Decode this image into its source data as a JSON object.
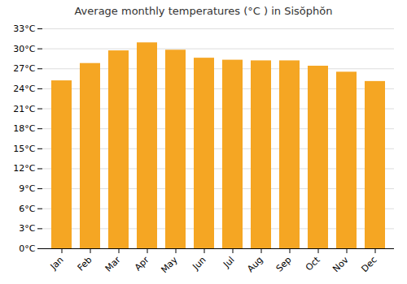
{
  "chart_data": {
    "type": "bar",
    "title": "Average monthly temperatures (°C ) in Sisŏphŏn",
    "categories": [
      "Jan",
      "Feb",
      "Mar",
      "Apr",
      "May",
      "Jun",
      "Jul",
      "Aug",
      "Sep",
      "Oct",
      "Nov",
      "Dec"
    ],
    "values": [
      25.2,
      27.8,
      29.7,
      30.9,
      29.8,
      28.6,
      28.3,
      28.2,
      28.2,
      27.4,
      26.5,
      25.1
    ],
    "color": "#F5A623",
    "ylim": [
      0,
      33
    ],
    "yticks": [
      {
        "value": 0,
        "label": "0°C"
      },
      {
        "value": 3,
        "label": "3°C"
      },
      {
        "value": 6,
        "label": "6°C"
      },
      {
        "value": 9,
        "label": "9°C"
      },
      {
        "value": 12,
        "label": "12°C"
      },
      {
        "value": 15,
        "label": "15°C"
      },
      {
        "value": 18,
        "label": "18°C"
      },
      {
        "value": 21,
        "label": "21°C"
      },
      {
        "value": 24,
        "label": "24°C"
      },
      {
        "value": 27,
        "label": "27°C"
      },
      {
        "value": 30,
        "label": "30°C"
      },
      {
        "value": 33,
        "label": "33°C"
      }
    ],
    "grid": true
  }
}
